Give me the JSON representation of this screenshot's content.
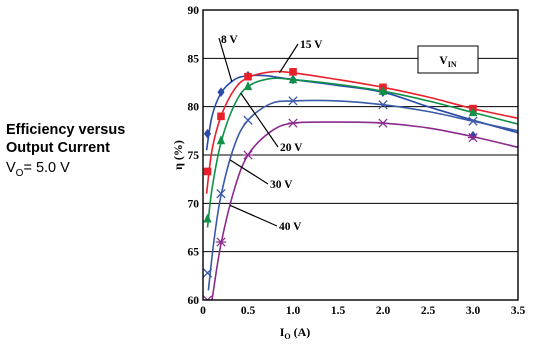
{
  "caption": {
    "line1": "Efficiency versus",
    "line2": "Output Current",
    "condition_main": "V",
    "condition_sub": "O",
    "condition_rest": "= 5.0 V"
  },
  "chart_data": {
    "type": "line",
    "xlabel": {
      "main": "I",
      "sub": "O",
      "rest": " (A)"
    },
    "ylabel": {
      "main": "η",
      "rest": " (%)"
    },
    "xlim": [
      0,
      3.5
    ],
    "ylim": [
      60,
      90
    ],
    "xticks": [
      0,
      0.5,
      1.0,
      1.5,
      2.0,
      2.5,
      3.0,
      3.5
    ],
    "xtick_labels": [
      "0",
      "0.5",
      "1.0",
      "1.5",
      "2.0",
      "2.5",
      "3.0",
      "3.5"
    ],
    "yticks": [
      60,
      65,
      70,
      75,
      80,
      85,
      90
    ],
    "ytick_labels": [
      "60",
      "65",
      "70",
      "75",
      "80",
      "85",
      "90"
    ],
    "grid": "horizontal",
    "legend_box": {
      "main": "V",
      "sub": "IN"
    },
    "colors": {
      "8V": "#2a4aa8",
      "15V": "#e8202a",
      "20V": "#109048",
      "30V": "#3a5aa8",
      "40V": "#8a2a8c"
    },
    "series": [
      {
        "name": "8 V",
        "key": "8V",
        "marker": "diamond",
        "points": [
          [
            0.05,
            77.2
          ],
          [
            0.2,
            81.5
          ],
          [
            0.5,
            83.2
          ],
          [
            1.0,
            82.8
          ],
          [
            2.0,
            81.5
          ],
          [
            3.0,
            77.0
          ]
        ],
        "curve": [
          [
            0.04,
            75.5
          ],
          [
            0.1,
            79.0
          ],
          [
            0.2,
            81.4
          ],
          [
            0.35,
            82.8
          ],
          [
            0.5,
            83.2
          ],
          [
            0.7,
            83.2
          ],
          [
            1.0,
            82.8
          ],
          [
            1.5,
            82.2
          ],
          [
            2.0,
            81.5
          ],
          [
            2.5,
            80.0
          ],
          [
            3.0,
            78.6
          ],
          [
            3.5,
            77.3
          ]
        ]
      },
      {
        "name": "15 V",
        "key": "15V",
        "marker": "square",
        "points": [
          [
            0.05,
            73.3
          ],
          [
            0.2,
            79.0
          ],
          [
            0.5,
            83.1
          ],
          [
            1.0,
            83.6
          ],
          [
            2.0,
            82.0
          ],
          [
            3.0,
            79.8
          ]
        ],
        "curve": [
          [
            0.04,
            71.0
          ],
          [
            0.1,
            75.5
          ],
          [
            0.2,
            79.0
          ],
          [
            0.35,
            81.8
          ],
          [
            0.5,
            83.0
          ],
          [
            0.75,
            83.6
          ],
          [
            1.0,
            83.5
          ],
          [
            1.5,
            82.8
          ],
          [
            2.0,
            82.0
          ],
          [
            2.5,
            81.0
          ],
          [
            3.0,
            79.8
          ],
          [
            3.5,
            78.8
          ]
        ]
      },
      {
        "name": "20 V",
        "key": "20V",
        "marker": "triangle",
        "points": [
          [
            0.05,
            68.4
          ],
          [
            0.2,
            76.5
          ],
          [
            0.5,
            82.1
          ],
          [
            1.0,
            82.8
          ],
          [
            2.0,
            81.6
          ],
          [
            3.0,
            79.4
          ]
        ],
        "curve": [
          [
            0.05,
            67.5
          ],
          [
            0.1,
            71.5
          ],
          [
            0.2,
            76.3
          ],
          [
            0.35,
            80.2
          ],
          [
            0.5,
            82.1
          ],
          [
            0.75,
            82.9
          ],
          [
            1.0,
            82.8
          ],
          [
            1.5,
            82.3
          ],
          [
            2.0,
            81.6
          ],
          [
            2.5,
            80.6
          ],
          [
            3.0,
            79.4
          ],
          [
            3.5,
            78.2
          ]
        ]
      },
      {
        "name": "30 V",
        "key": "30V",
        "marker": "x",
        "points": [
          [
            0.05,
            62.8
          ],
          [
            0.2,
            71.0
          ],
          [
            0.5,
            78.6
          ],
          [
            1.0,
            80.6
          ],
          [
            2.0,
            80.2
          ],
          [
            3.0,
            78.5
          ]
        ],
        "curve": [
          [
            0.06,
            61.0
          ],
          [
            0.12,
            66.0
          ],
          [
            0.2,
            70.8
          ],
          [
            0.35,
            76.0
          ],
          [
            0.5,
            78.6
          ],
          [
            0.75,
            80.3
          ],
          [
            1.0,
            80.6
          ],
          [
            1.5,
            80.6
          ],
          [
            2.0,
            80.2
          ],
          [
            2.5,
            79.5
          ],
          [
            3.0,
            78.5
          ],
          [
            3.5,
            77.5
          ]
        ]
      },
      {
        "name": "40 V",
        "key": "40V",
        "marker": "star",
        "points": [
          [
            0.05,
            60.0
          ],
          [
            0.2,
            66.0
          ],
          [
            0.5,
            75.0
          ],
          [
            1.0,
            78.3
          ],
          [
            2.0,
            78.3
          ],
          [
            3.0,
            76.8
          ]
        ],
        "curve": [
          [
            0.1,
            60.0
          ],
          [
            0.2,
            65.8
          ],
          [
            0.35,
            71.5
          ],
          [
            0.5,
            75.0
          ],
          [
            0.75,
            77.4
          ],
          [
            1.0,
            78.3
          ],
          [
            1.5,
            78.4
          ],
          [
            2.0,
            78.3
          ],
          [
            2.5,
            77.8
          ],
          [
            3.0,
            76.9
          ],
          [
            3.5,
            75.8
          ]
        ]
      }
    ],
    "annotations": [
      {
        "text": "8 V",
        "key": "8V"
      },
      {
        "text": "15 V",
        "key": "15V"
      },
      {
        "text": "20 V",
        "key": "20V"
      },
      {
        "text": "30 V",
        "key": "30V"
      },
      {
        "text": "40 V",
        "key": "40V"
      }
    ]
  }
}
